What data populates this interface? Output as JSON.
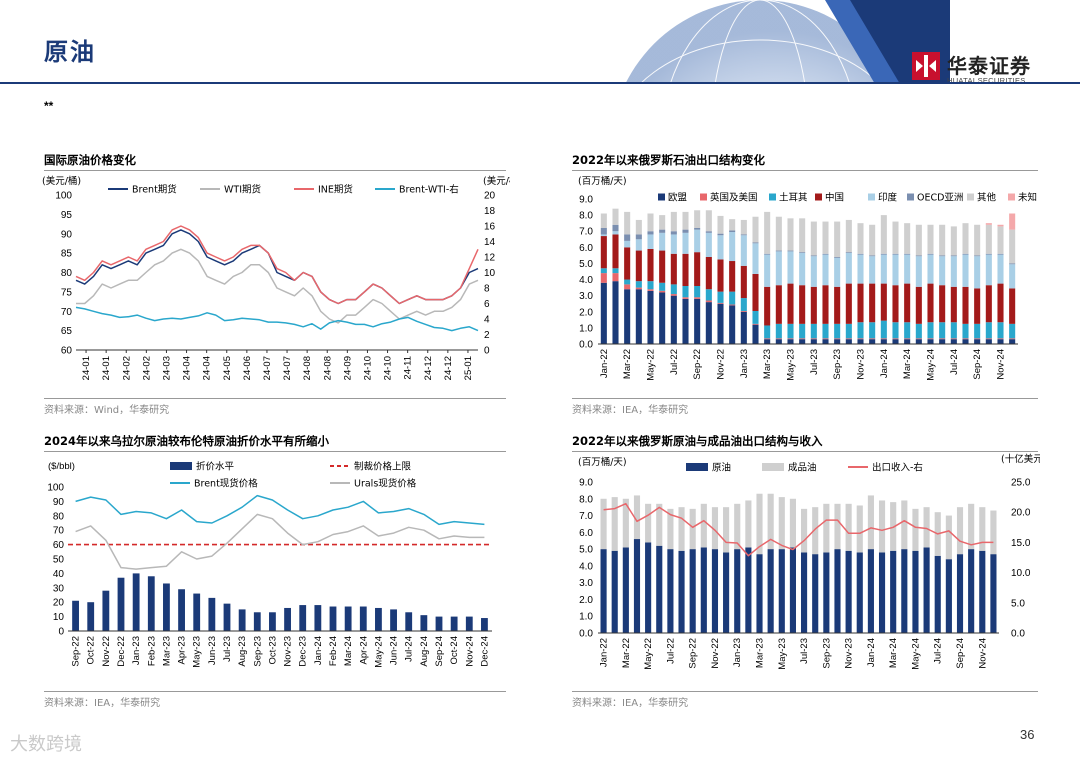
{
  "page": {
    "title": "原油",
    "note": "**",
    "page_number": "36",
    "watermark": "大数跨境"
  },
  "brand": {
    "name_cn": "华泰证券",
    "name_en": "HUATAI SECURITIES",
    "color": "#c8102e",
    "navy": "#1b3a78"
  },
  "panels": {
    "p1": {
      "title": "国际原油价格变化",
      "source": "资料来源：Wind，华泰研究"
    },
    "p2": {
      "title": "2022年以来俄罗斯石油出口结构变化",
      "source": "资料来源：IEA，华泰研究"
    },
    "p3": {
      "title": "2024年以来乌拉尔原油较布伦特原油折价水平有所缩小",
      "source": "资料来源：IEA，华泰研究"
    },
    "p4": {
      "title": "2022年以来俄罗斯原油与成品油出口结构与收入",
      "source": "资料来源：IEA，华泰研究"
    }
  },
  "chart_data": [
    {
      "id": "c1",
      "type": "line",
      "title": "国际原油价格变化",
      "ylabel_left": "(美元/桶)",
      "ylabel_right": "(美元/桶)",
      "ylim_left": [
        60,
        100
      ],
      "ylim_right": [
        0,
        20
      ],
      "yticks_left": [
        60,
        65,
        70,
        75,
        80,
        85,
        90,
        95,
        100
      ],
      "yticks_right": [
        0,
        2,
        4,
        6,
        8,
        10,
        12,
        14,
        16,
        18,
        20
      ],
      "xticks": [
        "24-01",
        "24-01",
        "24-02",
        "24-02",
        "24-03",
        "24-04",
        "24-04",
        "24-05",
        "24-06",
        "24-07",
        "24-07",
        "24-08",
        "24-08",
        "24-09",
        "24-10",
        "24-10",
        "24-11",
        "24-12",
        "24-12",
        "25-01"
      ],
      "series": [
        {
          "name": "Brent期货",
          "color": "#1b3a78",
          "axis": "left",
          "values": [
            78,
            77,
            79,
            82,
            81,
            82,
            83,
            82,
            85,
            86,
            87,
            90,
            91,
            90,
            88,
            84,
            83,
            82,
            83,
            85,
            86,
            87,
            85,
            80,
            79,
            78,
            80,
            79,
            75,
            73,
            72,
            73,
            73,
            75,
            77,
            76,
            74,
            72,
            73,
            74,
            73,
            73,
            73,
            74,
            76,
            80,
            81
          ]
        },
        {
          "name": "WTI期货",
          "color": "#b8b8b8",
          "axis": "left",
          "values": [
            72,
            72,
            74,
            77,
            76,
            77,
            78,
            78,
            80,
            82,
            83,
            85,
            86,
            85,
            83,
            79,
            78,
            77,
            79,
            80,
            82,
            82,
            80,
            76,
            75,
            74,
            76,
            74,
            70,
            68,
            67,
            69,
            69,
            71,
            73,
            72,
            70,
            68,
            69,
            70,
            69,
            70,
            70,
            71,
            73,
            77,
            78
          ]
        },
        {
          "name": "INE期货",
          "color": "#e8676b",
          "axis": "left",
          "values": [
            79,
            78,
            80,
            83,
            82,
            83,
            84,
            83,
            86,
            87,
            88,
            91,
            92,
            91,
            89,
            85,
            84,
            83,
            84,
            86,
            87,
            87,
            85,
            81,
            80,
            78,
            80,
            79,
            75,
            73,
            72,
            73,
            73,
            75,
            77,
            76,
            74,
            72,
            73,
            74,
            73,
            73,
            73,
            74,
            76,
            81,
            86
          ]
        },
        {
          "name": "Brent-WTI-右",
          "color": "#2aa7cc",
          "axis": "right",
          "values": [
            5.5,
            5.3,
            5.0,
            4.7,
            4.5,
            4.2,
            4.3,
            4.5,
            4.1,
            3.8,
            4.0,
            4.1,
            4.0,
            4.2,
            4.4,
            4.8,
            4.5,
            3.8,
            3.9,
            4.1,
            4.0,
            3.9,
            3.6,
            3.6,
            3.5,
            3.3,
            3.0,
            3.4,
            2.7,
            3.5,
            3.8,
            3.6,
            3.3,
            3.3,
            3.0,
            3.4,
            3.6,
            4.0,
            4.2,
            3.7,
            3.3,
            2.9,
            2.8,
            2.5,
            2.8,
            3.0,
            2.5
          ]
        }
      ]
    },
    {
      "id": "c2",
      "type": "stacked-bar",
      "title": "2022年以来俄罗斯石油出口结构变化",
      "ylabel": "(百万桶/天)",
      "ylim": [
        0,
        9
      ],
      "yticks": [
        "0.0",
        "1.0",
        "2.0",
        "3.0",
        "4.0",
        "5.0",
        "6.0",
        "7.0",
        "8.0",
        "9.0"
      ],
      "categories": [
        "Jan-22",
        "Feb-22",
        "Mar-22",
        "Apr-22",
        "May-22",
        "Jun-22",
        "Jul-22",
        "Aug-22",
        "Sep-22",
        "Oct-22",
        "Nov-22",
        "Dec-22",
        "Jan-23",
        "Feb-23",
        "Mar-23",
        "Apr-23",
        "May-23",
        "Jun-23",
        "Jul-23",
        "Aug-23",
        "Sep-23",
        "Oct-23",
        "Nov-23",
        "Dec-23",
        "Jan-24",
        "Feb-24",
        "Mar-24",
        "Apr-24",
        "May-24",
        "Jun-24",
        "Jul-24",
        "Aug-24",
        "Sep-24",
        "Oct-24",
        "Nov-24",
        "Dec-24"
      ],
      "xticks": [
        "Jan-22",
        "Mar-22",
        "May-22",
        "Jul-22",
        "Sep-22",
        "Nov-22",
        "Jan-23",
        "Mar-23",
        "May-23",
        "Jul-23",
        "Sep-23",
        "Nov-23",
        "Jan-24",
        "Mar-24",
        "May-24",
        "Jul-24",
        "Sep-24",
        "Nov-24"
      ],
      "series": [
        {
          "name": "欧盟",
          "color": "#1b3a78",
          "values": [
            3.8,
            3.9,
            3.4,
            3.4,
            3.3,
            3.2,
            3.0,
            2.8,
            2.8,
            2.6,
            2.5,
            2.4,
            2.0,
            1.2,
            0.3,
            0.3,
            0.3,
            0.3,
            0.3,
            0.3,
            0.3,
            0.3,
            0.3,
            0.3,
            0.3,
            0.3,
            0.3,
            0.3,
            0.3,
            0.3,
            0.3,
            0.3,
            0.3,
            0.3,
            0.3,
            0.3
          ]
        },
        {
          "name": "英国及美国",
          "color": "#e8676b",
          "values": [
            0.6,
            0.5,
            0.3,
            0.1,
            0.1,
            0.1,
            0.1,
            0.1,
            0.1,
            0.1,
            0.05,
            0.05,
            0.05,
            0.05,
            0.05,
            0.05,
            0.05,
            0.05,
            0.05,
            0.05,
            0.05,
            0.05,
            0.05,
            0.05,
            0.05,
            0.05,
            0.05,
            0.05,
            0.05,
            0.05,
            0.05,
            0.05,
            0.05,
            0.05,
            0.05,
            0.05
          ]
        },
        {
          "name": "土耳其",
          "color": "#2aa7cc",
          "values": [
            0.3,
            0.3,
            0.3,
            0.4,
            0.5,
            0.5,
            0.6,
            0.7,
            0.7,
            0.7,
            0.7,
            0.8,
            0.8,
            0.8,
            0.8,
            0.9,
            0.9,
            0.9,
            0.9,
            0.9,
            0.9,
            0.9,
            1.0,
            1.0,
            1.1,
            1.0,
            1.0,
            0.9,
            1.0,
            1.0,
            1.0,
            0.9,
            0.9,
            1.0,
            1.0,
            0.9
          ]
        },
        {
          "name": "中国",
          "color": "#a31a1a",
          "values": [
            2.0,
            2.1,
            2.0,
            1.9,
            2.0,
            2.0,
            1.9,
            2.0,
            2.1,
            2.0,
            2.0,
            1.9,
            2.0,
            2.3,
            2.4,
            2.4,
            2.5,
            2.4,
            2.3,
            2.4,
            2.3,
            2.5,
            2.4,
            2.4,
            2.3,
            2.3,
            2.4,
            2.3,
            2.4,
            2.3,
            2.2,
            2.3,
            2.2,
            2.3,
            2.4,
            2.2
          ]
        },
        {
          "name": "印度",
          "color": "#a9cfe6",
          "values": [
            0.1,
            0.2,
            0.4,
            0.7,
            0.9,
            1.1,
            1.2,
            1.3,
            1.4,
            1.5,
            1.5,
            1.8,
            1.9,
            1.9,
            2.0,
            2.1,
            2.0,
            2.0,
            1.9,
            1.9,
            1.8,
            1.9,
            1.8,
            1.7,
            1.8,
            1.9,
            1.8,
            1.9,
            1.8,
            1.8,
            1.9,
            2.0,
            2.0,
            1.9,
            1.8,
            1.5
          ]
        },
        {
          "name": "OECD亚洲",
          "color": "#7b8fb0",
          "values": [
            0.4,
            0.4,
            0.4,
            0.3,
            0.2,
            0.2,
            0.2,
            0.2,
            0.1,
            0.1,
            0.1,
            0.1,
            0.05,
            0.05,
            0.05,
            0.05,
            0.05,
            0.05,
            0.05,
            0.05,
            0.05,
            0.05,
            0.05,
            0.05,
            0.05,
            0.05,
            0.05,
            0.05,
            0.05,
            0.05,
            0.05,
            0.05,
            0.05,
            0.05,
            0.05,
            0.05
          ]
        },
        {
          "name": "其他",
          "color": "#cfcfcf",
          "values": [
            0.9,
            1.0,
            1.4,
            0.9,
            1.1,
            0.9,
            1.2,
            1.1,
            1.1,
            1.3,
            1.1,
            0.7,
            0.9,
            1.6,
            2.6,
            2.1,
            2.0,
            2.1,
            2.1,
            2.0,
            2.2,
            2.0,
            1.9,
            1.9,
            2.4,
            2.0,
            1.9,
            1.9,
            1.8,
            1.9,
            1.8,
            1.9,
            1.9,
            1.8,
            1.7,
            2.1
          ]
        },
        {
          "name": "未知",
          "color": "#f4a8aa",
          "values": [
            0,
            0,
            0,
            0,
            0,
            0,
            0,
            0,
            0,
            0,
            0,
            0,
            0,
            0,
            0,
            0,
            0,
            0,
            0,
            0,
            0,
            0,
            0,
            0,
            0,
            0,
            0,
            0,
            0,
            0,
            0,
            0,
            0,
            0.1,
            0.1,
            1.0
          ]
        }
      ]
    },
    {
      "id": "c3",
      "type": "bar-line",
      "title": "2024年以来乌拉尔原油较布伦特原油折价水平有所缩小",
      "ylabel": "($/bbl)",
      "ylim": [
        0,
        100
      ],
      "yticks": [
        0,
        10,
        20,
        30,
        40,
        50,
        60,
        70,
        80,
        90,
        100
      ],
      "categories": [
        "Sep-22",
        "Oct-22",
        "Nov-22",
        "Dec-22",
        "Jan-23",
        "Feb-23",
        "Mar-23",
        "Apr-23",
        "May-23",
        "Jun-23",
        "Jul-23",
        "Aug-23",
        "Sep-23",
        "Oct-23",
        "Nov-23",
        "Dec-23",
        "Jan-24",
        "Feb-24",
        "Mar-24",
        "Apr-24",
        "May-24",
        "Jun-24",
        "Jul-24",
        "Aug-24",
        "Sep-24",
        "Oct-24",
        "Nov-24",
        "Dec-24"
      ],
      "bars": {
        "name": "折价水平",
        "color": "#1b3a78",
        "values": [
          21,
          20,
          28,
          37,
          40,
          38,
          33,
          29,
          26,
          23,
          19,
          15,
          13,
          13,
          16,
          18,
          18,
          17,
          17,
          17,
          16,
          15,
          13,
          11,
          10,
          10,
          10,
          9
        ]
      },
      "lines": [
        {
          "name": "Brent现货价格",
          "color": "#2aa7cc",
          "values": [
            90,
            93,
            91,
            81,
            83,
            82,
            78,
            84,
            76,
            75,
            80,
            86,
            94,
            91,
            84,
            78,
            80,
            84,
            86,
            90,
            82,
            83,
            85,
            81,
            74,
            76,
            75,
            74
          ]
        },
        {
          "name": "Urals现货价格",
          "color": "#b8b8b8",
          "values": [
            69,
            73,
            63,
            44,
            43,
            44,
            45,
            55,
            50,
            52,
            61,
            71,
            81,
            78,
            68,
            60,
            62,
            67,
            69,
            73,
            66,
            68,
            72,
            70,
            64,
            66,
            65,
            65
          ]
        }
      ],
      "reference": {
        "name": "制裁价格上限",
        "value": 60,
        "color": "#d42a2a"
      }
    },
    {
      "id": "c4",
      "type": "stacked-bar-line",
      "title": "2022年以来俄罗斯原油与成品油出口结构与收入",
      "ylabel_left": "(百万桶/天)",
      "ylabel_right": "(十亿美元)",
      "ylim_left": [
        0,
        9
      ],
      "ylim_right": [
        0,
        25
      ],
      "yticks_left": [
        "0.0",
        "1.0",
        "2.0",
        "3.0",
        "4.0",
        "5.0",
        "6.0",
        "7.0",
        "8.0",
        "9.0"
      ],
      "yticks_right": [
        "0.0",
        "5.0",
        "10.0",
        "15.0",
        "20.0",
        "25.0"
      ],
      "categories": [
        "Jan-22",
        "Feb-22",
        "Mar-22",
        "Apr-22",
        "May-22",
        "Jun-22",
        "Jul-22",
        "Aug-22",
        "Sep-22",
        "Oct-22",
        "Nov-22",
        "Dec-22",
        "Jan-23",
        "Feb-23",
        "Mar-23",
        "Apr-23",
        "May-23",
        "Jun-23",
        "Jul-23",
        "Aug-23",
        "Sep-23",
        "Oct-23",
        "Nov-23",
        "Dec-23",
        "Jan-24",
        "Feb-24",
        "Mar-24",
        "Apr-24",
        "May-24",
        "Jun-24",
        "Jul-24",
        "Aug-24",
        "Sep-24",
        "Oct-24",
        "Nov-24",
        "Dec-24"
      ],
      "xticks": [
        "Jan-22",
        "Mar-22",
        "May-22",
        "Jul-22",
        "Sep-22",
        "Nov-22",
        "Jan-23",
        "Mar-23",
        "May-23",
        "Jul-23",
        "Sep-23",
        "Nov-23",
        "Jan-24",
        "Mar-24",
        "May-24",
        "Jul-24",
        "Sep-24",
        "Nov-24"
      ],
      "series": [
        {
          "name": "原油",
          "color": "#1b3a78",
          "values": [
            5.0,
            4.9,
            5.1,
            5.6,
            5.4,
            5.2,
            5.0,
            4.9,
            5.0,
            5.1,
            5.0,
            4.8,
            5.0,
            5.1,
            4.7,
            5.0,
            5.0,
            5.1,
            4.8,
            4.7,
            4.8,
            5.0,
            4.9,
            4.8,
            5.0,
            4.8,
            4.9,
            5.0,
            4.9,
            5.1,
            4.6,
            4.4,
            4.7,
            5.0,
            4.9,
            4.7
          ]
        },
        {
          "name": "成品油",
          "color": "#cfcfcf",
          "values": [
            3.0,
            3.2,
            2.9,
            2.6,
            2.3,
            2.5,
            2.4,
            2.6,
            2.4,
            2.6,
            2.5,
            2.7,
            2.7,
            2.8,
            3.6,
            3.3,
            3.1,
            2.9,
            2.6,
            2.8,
            2.9,
            2.7,
            2.8,
            2.8,
            3.2,
            3.1,
            2.9,
            2.9,
            2.5,
            2.4,
            2.6,
            2.6,
            2.8,
            2.7,
            2.6,
            2.6
          ]
        }
      ],
      "line": {
        "name": "出口收入-右",
        "color": "#e8676b",
        "axis": "right",
        "values": [
          20.4,
          20.6,
          21.4,
          18.5,
          19.5,
          20.8,
          19.6,
          19.0,
          17.5,
          18.6,
          17.0,
          15.0,
          14.9,
          12.8,
          14.3,
          15.5,
          14.5,
          13.8,
          15.3,
          17.2,
          18.7,
          18.7,
          16.5,
          16.5,
          17.4,
          17.0,
          17.5,
          18.6,
          17.5,
          17.3,
          16.4,
          16.9,
          15.2,
          14.6,
          15.0,
          15.0
        ]
      }
    }
  ]
}
